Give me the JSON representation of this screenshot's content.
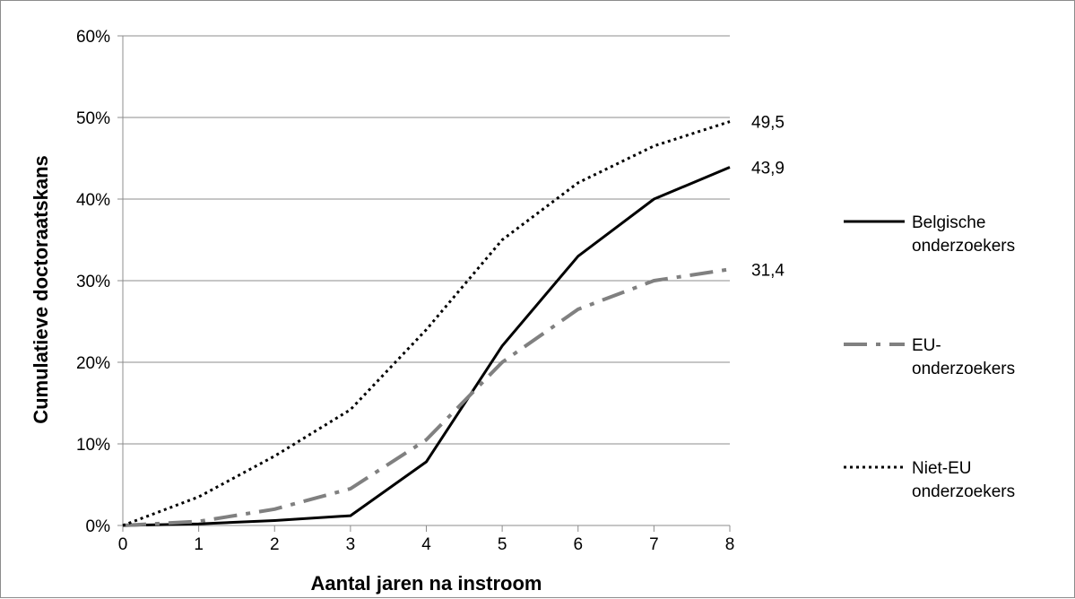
{
  "chart_data": {
    "type": "line",
    "title": "",
    "xlabel": "Aantal jaren na instroom",
    "ylabel": "Cumulatieve doctoraatskans",
    "x": [
      0,
      1,
      2,
      3,
      4,
      5,
      6,
      7,
      8
    ],
    "xlim": [
      0,
      8
    ],
    "ylim": [
      0,
      60
    ],
    "y_ticks": [
      "0%",
      "10%",
      "20%",
      "30%",
      "40%",
      "50%",
      "60%"
    ],
    "x_ticks": [
      "0",
      "1",
      "2",
      "3",
      "4",
      "5",
      "6",
      "7",
      "8"
    ],
    "grid": "horizontal",
    "legend_position": "right",
    "series": [
      {
        "name": "Belgische onderzoekers",
        "legend_lines": [
          "Belgische",
          "onderzoekers"
        ],
        "values": [
          0,
          0.2,
          0.6,
          1.2,
          7.8,
          22.0,
          33.0,
          40.0,
          43.9
        ],
        "end_label": "43,9",
        "color": "#000000",
        "style": "solid"
      },
      {
        "name": "EU-onderzoekers",
        "legend_lines": [
          "EU-",
          "onderzoekers"
        ],
        "values": [
          0,
          0.5,
          2.0,
          4.5,
          10.5,
          20.0,
          26.5,
          30.0,
          31.4
        ],
        "end_label": "31,4",
        "color": "#808080",
        "style": "dashdot"
      },
      {
        "name": "Niet-EU onderzoekers",
        "legend_lines": [
          "Niet-EU",
          "onderzoekers"
        ],
        "values": [
          0,
          3.5,
          8.5,
          14.2,
          24.0,
          35.0,
          42.0,
          46.5,
          49.5
        ],
        "end_label": "49,5",
        "color": "#000000",
        "style": "dotted"
      }
    ]
  }
}
